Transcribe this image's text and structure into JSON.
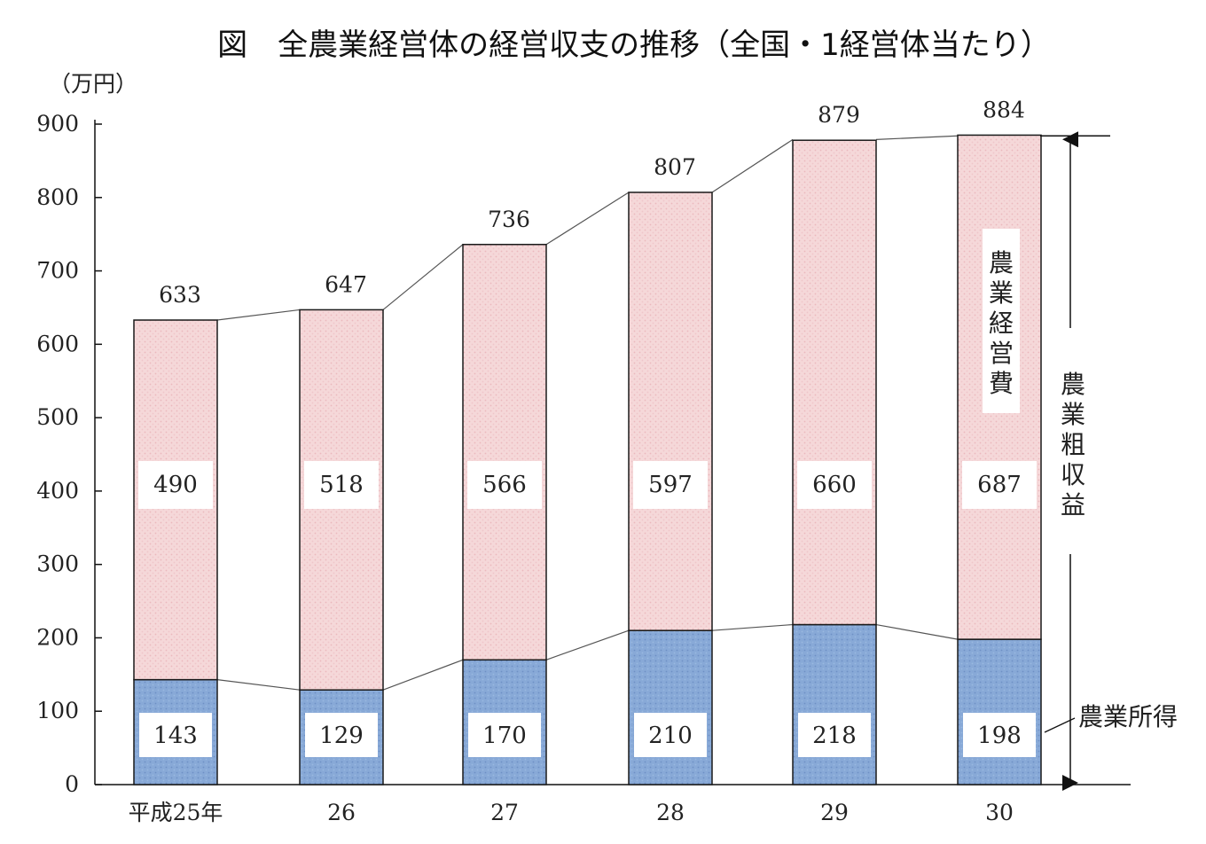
{
  "chart_data": {
    "type": "bar",
    "stacked": true,
    "title": "図　全農業経営体の経営収支の推移（全国・1経営体当たり）",
    "unit_label": "（万円）",
    "categories": [
      "平成25年",
      "26",
      "27",
      "28",
      "29",
      "30"
    ],
    "ylim": [
      0,
      900
    ],
    "yticks": [
      0,
      100,
      200,
      300,
      400,
      500,
      600,
      700,
      800,
      900
    ],
    "totals": [
      633,
      647,
      736,
      807,
      879,
      884
    ],
    "series": [
      {
        "name": "農業所得",
        "values": [
          143,
          129,
          170,
          210,
          218,
          198
        ],
        "color": "#86a8d8"
      },
      {
        "name": "農業経営費",
        "values": [
          490,
          518,
          566,
          597,
          660,
          687
        ],
        "color": "#f4d2d4"
      }
    ],
    "bracket_label": "農業粗収益",
    "legend": "inline"
  }
}
